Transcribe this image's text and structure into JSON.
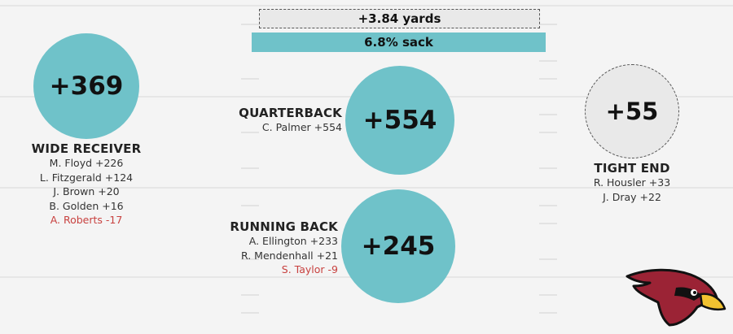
{
  "summary": {
    "yards_label": "+3.84 yards",
    "sack_label": "6.8% sack"
  },
  "positions": {
    "wide_receiver": {
      "title": "WIDE RECEIVER",
      "total": "+369",
      "players": [
        {
          "text": "M. Floyd +226",
          "negative": false
        },
        {
          "text": "L. Fitzgerald +124",
          "negative": false
        },
        {
          "text": "J. Brown +20",
          "negative": false
        },
        {
          "text": "B. Golden +16",
          "negative": false
        },
        {
          "text": "A. Roberts -17",
          "negative": true
        }
      ]
    },
    "quarterback": {
      "title": "QUARTERBACK",
      "total": "+554",
      "players": [
        {
          "text": "C. Palmer +554",
          "negative": false
        }
      ]
    },
    "running_back": {
      "title": "RUNNING BACK",
      "total": "+245",
      "players": [
        {
          "text": "A. Ellington +233",
          "negative": false
        },
        {
          "text": "R. Mendenhall +21",
          "negative": false
        },
        {
          "text": "S. Taylor -9",
          "negative": true
        }
      ]
    },
    "tight_end": {
      "title": "TIGHT END",
      "total": "+55",
      "players": [
        {
          "text": "R. Housler +33",
          "negative": false
        },
        {
          "text": "J. Dray +22",
          "negative": false
        }
      ]
    }
  },
  "colors": {
    "circle_fill": "#6fc2c9",
    "tight_end_fill": "#e9e9e9",
    "negative_text": "#c8413f",
    "logo_red": "#9b2335",
    "logo_beak": "#f2c230"
  },
  "logo": {
    "icon": "cardinal-head-icon"
  }
}
